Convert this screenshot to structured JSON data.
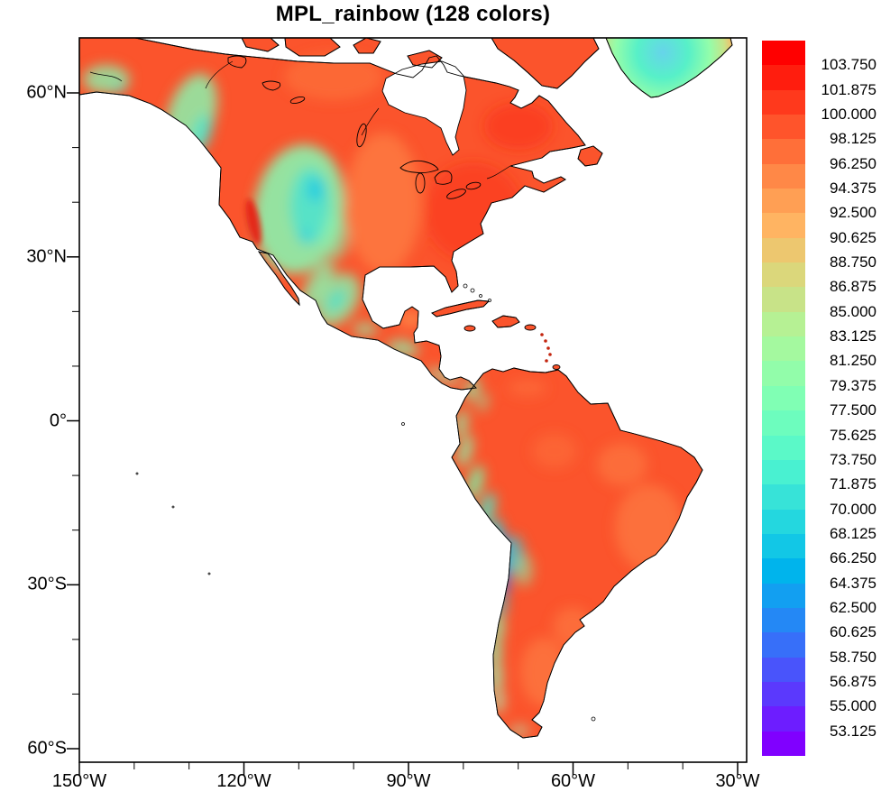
{
  "chart": {
    "title": "MPL_rainbow (128 colors)"
  },
  "colors": {
    "background": "#ffffff",
    "ocean": "#ffffff",
    "land_base": "#fb542c",
    "coastline": "#000000",
    "frame_and_ticks": "#000000",
    "title_text": "#000000",
    "label_text": "#000000"
  },
  "axes": {
    "y_labels": [
      "60°N",
      "30°N",
      "0°",
      "30°S",
      "60°S"
    ],
    "x_labels": [
      "150°W",
      "120°W",
      "90°W",
      "60°W",
      "30°W"
    ]
  },
  "colorbar": {
    "labels": [
      "103.750",
      "101.875",
      "100.000",
      "98.125",
      "96.250",
      "94.375",
      "92.500",
      "90.625",
      "88.750",
      "86.875",
      "85.000",
      "83.125",
      "81.250",
      "79.375",
      "77.500",
      "75.625",
      "73.750",
      "71.875",
      "70.000",
      "68.125",
      "66.250",
      "64.375",
      "62.500",
      "60.625",
      "58.750",
      "56.875",
      "55.000",
      "53.125"
    ],
    "segment_colors": [
      "#ff0000",
      "#ff1d0e",
      "#ff391c",
      "#ff542b",
      "#ff6f39",
      "#ff8847",
      "#ff9f54",
      "#ffb462",
      "#edc76f",
      "#dbd77b",
      "#c8e388",
      "#b6f194",
      "#a4f99f",
      "#92fdaa",
      "#80ffb4",
      "#6dfdbe",
      "#5bf9c8",
      "#49f1d1",
      "#37e3d8",
      "#24d7df",
      "#12c7e6",
      "#00b4ec",
      "#129ff1",
      "#2488f5",
      "#376ff9",
      "#4954fb",
      "#5b39fd",
      "#6d1dff",
      "#8000ff"
    ]
  },
  "chart_data": {
    "type": "heatmap",
    "title": "MPL_rainbow (128 colors)",
    "map_region": "North and South America (land-only filled field, oceans masked white)",
    "projection": "cylindrical equidistant lat/lon",
    "x_axis": {
      "tick_labels": [
        "150°W",
        "120°W",
        "90°W",
        "60°W",
        "30°W"
      ]
    },
    "y_axis": {
      "tick_labels": [
        "60°N",
        "30°N",
        "0°",
        "30°S",
        "60°S"
      ]
    },
    "colormap": {
      "name": "MPL_rainbow",
      "n_colors": 128,
      "low_color": "#8000ff",
      "high_color": "#ff0000"
    },
    "colorbar_levels": [
      103.75,
      101.875,
      100.0,
      98.125,
      96.25,
      94.375,
      92.5,
      90.625,
      88.75,
      86.875,
      85.0,
      83.125,
      81.25,
      79.375,
      77.5,
      75.625,
      73.75,
      71.875,
      70.0,
      68.125,
      66.25,
      64.375,
      62.5,
      60.625,
      58.75,
      56.875,
      55.0,
      53.125
    ],
    "legend_position": "right vertical labelbar",
    "grid": false,
    "field_summary": [
      {
        "region": "Lowland North America, Amazon basin, eastern Brazil, Patagonia lowlands",
        "approx_value": "96-102 (red/orange)"
      },
      {
        "region": "Great Plains and northern Canada",
        "approx_value": "90-96 (orange)"
      },
      {
        "region": "Rocky Mountains / Great Basin / Colorado Plateau",
        "approx_value": "72-85 (green/cyan)"
      },
      {
        "region": "California Central Valley strip",
        "approx_value": "100-103 (deep red)"
      },
      {
        "region": "Mexican Plateau / Sierra Madre / Central American cordillera",
        "approx_value": "78-90 (green)"
      },
      {
        "region": "Andes cordillera",
        "approx_value": "62-80 (green/cyan)"
      },
      {
        "region": "Central Andes Altiplano",
        "approx_value": "55-64 (blue)"
      },
      {
        "region": "Greenland interior ice sheet",
        "approx_value": "68-80 (cyan/green)"
      },
      {
        "region": "Oceans, Hudson Bay, Gulf of Mexico",
        "approx_value": "masked (white)"
      }
    ]
  }
}
